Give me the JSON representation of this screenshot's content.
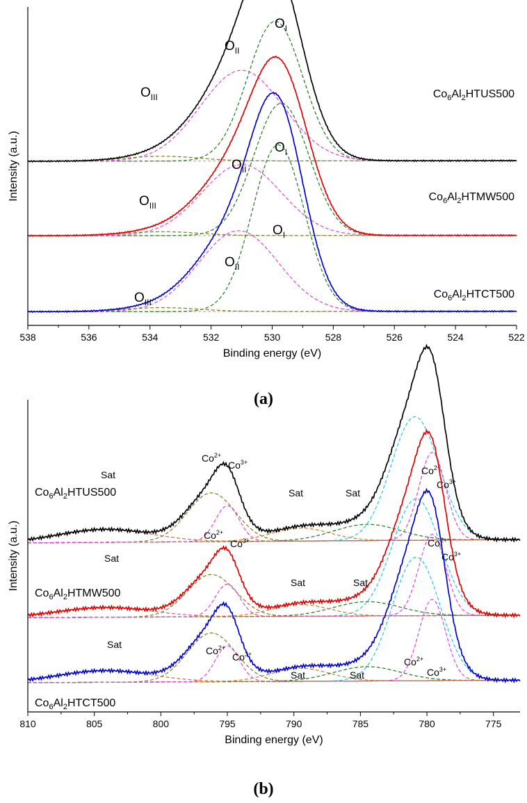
{
  "chart_data": [
    {
      "panel": "(a)",
      "type": "line",
      "xlabel": "Binding energy (eV)",
      "ylabel": "Intensity (a.u.)",
      "xlim": [
        538,
        522
      ],
      "x_reversed": true,
      "xticks": [
        538,
        536,
        534,
        532,
        530,
        528,
        526,
        524,
        522
      ],
      "yticks": "none",
      "samples": [
        {
          "name": "Co6Al2HTUS500",
          "label_main": "Co",
          "label_sub1": "6",
          "label_mid": "Al",
          "label_sub2": "2",
          "label_tail": "HTUS500",
          "color": "#000000",
          "offset": 3.05,
          "background": 0.05,
          "components": [
            {
              "name": "O_I",
              "label_main": "O",
              "label_sub": "I",
              "center": 529.9,
              "width": 0.9,
              "height": 2.85,
              "color": "#1a7a1a"
            },
            {
              "name": "O_II",
              "label_main": "O",
              "label_sub": "II",
              "center": 531.0,
              "width": 1.35,
              "height": 1.85,
              "color": "#e040e0"
            },
            {
              "name": "O_III",
              "label_main": "O",
              "label_sub": "III",
              "center": 533.6,
              "width": 1.2,
              "height": 0.1,
              "color": "#7a7a20"
            }
          ]
        },
        {
          "name": "Co6Al2HTMW500",
          "label_main": "Co",
          "label_sub1": "6",
          "label_mid": "Al",
          "label_sub2": "2",
          "label_tail": "HTMW500",
          "color": "#e00000",
          "offset": 1.55,
          "background": 0.03,
          "components": [
            {
              "name": "O_I",
              "label_main": "O",
              "label_sub": "I",
              "center": 529.7,
              "width": 0.9,
              "height": 2.7,
              "color": "#1a7a1a"
            },
            {
              "name": "O_II",
              "label_main": "O",
              "label_sub": "II",
              "center": 531.0,
              "width": 1.3,
              "height": 1.45,
              "color": "#e040e0"
            },
            {
              "name": "O_III",
              "label_main": "O",
              "label_sub": "III",
              "center": 533.6,
              "width": 1.2,
              "height": 0.08,
              "color": "#7a7a20"
            }
          ]
        },
        {
          "name": "Co6Al2HTCT500",
          "label_main": "Co",
          "label_sub1": "6",
          "label_mid": "Al",
          "label_sub2": "2",
          "label_tail": "HTCT500",
          "color": "#0000d0",
          "offset": 0.0,
          "background": 0.03,
          "components": [
            {
              "name": "O_I",
              "label_main": "O",
              "label_sub": "I",
              "center": 529.8,
              "width": 0.85,
              "height": 3.4,
              "color": "#1a7a1a"
            },
            {
              "name": "O_II",
              "label_main": "O",
              "label_sub": "II",
              "center": 531.1,
              "width": 1.3,
              "height": 1.65,
              "color": "#e040e0"
            },
            {
              "name": "O_III",
              "label_main": "O",
              "label_sub": "III",
              "center": 533.6,
              "width": 1.2,
              "height": 0.08,
              "color": "#7a7a20"
            }
          ]
        }
      ]
    },
    {
      "panel": "(b)",
      "type": "line",
      "xlabel": "Binding energy (eV)",
      "ylabel": "Intensity (a.u.)",
      "xlim": [
        810,
        773
      ],
      "x_reversed": true,
      "xticks": [
        810,
        805,
        800,
        795,
        790,
        785,
        780,
        775
      ],
      "yticks": "none",
      "samples": [
        {
          "name": "Co6Al2HTUS500",
          "label_main": "Co",
          "label_sub1": "6",
          "label_mid": "Al",
          "label_sub2": "2",
          "label_tail": "HTUS500",
          "color": "#000000",
          "offset": 2.1,
          "background": 0.2,
          "components": [
            {
              "name": "Co2+ 2p3/2",
              "center": 780.9,
              "width": 1.8,
              "height": 1.9,
              "color": "#20c8e0"
            },
            {
              "name": "Co3+ 2p3/2",
              "center": 779.6,
              "width": 1.0,
              "height": 1.35,
              "color": "#e040e0"
            },
            {
              "name": "Sat",
              "center": 784.5,
              "width": 2.5,
              "height": 0.25,
              "color": "#1a7a1a"
            },
            {
              "name": "Sat",
              "center": 789.5,
              "width": 2.2,
              "height": 0.2,
              "color": "#d08020"
            },
            {
              "name": "Co2+ 2p1/2",
              "center": 796.2,
              "width": 1.8,
              "height": 0.75,
              "color": "#7a7a20"
            },
            {
              "name": "Co3+ 2p1/2",
              "center": 795.0,
              "width": 0.9,
              "height": 0.55,
              "color": "#e040e0"
            },
            {
              "name": "Sat",
              "center": 804.2,
              "width": 3.5,
              "height": 0.2,
              "color": "#c07050"
            }
          ]
        },
        {
          "name": "Co6Al2HTMW500",
          "label_main": "Co",
          "label_sub1": "6",
          "label_mid": "Al",
          "label_sub2": "2",
          "label_tail": "HTMW500",
          "color": "#e00000",
          "offset": 1.0,
          "background": 0.15,
          "components": [
            {
              "name": "Co2+ 2p3/2",
              "center": 780.8,
              "width": 1.8,
              "height": 1.8,
              "color": "#20c8e0"
            },
            {
              "name": "Co3+ 2p3/2",
              "center": 779.6,
              "width": 1.0,
              "height": 1.25,
              "color": "#e040e0"
            },
            {
              "name": "Sat",
              "center": 784.5,
              "width": 2.5,
              "height": 0.22,
              "color": "#1a7a1a"
            },
            {
              "name": "Sat",
              "center": 789.5,
              "width": 2.2,
              "height": 0.18,
              "color": "#d08020"
            },
            {
              "name": "Co2+ 2p1/2",
              "center": 796.2,
              "width": 1.8,
              "height": 0.65,
              "color": "#7a7a20"
            },
            {
              "name": "Co3+ 2p1/2",
              "center": 795.0,
              "width": 0.9,
              "height": 0.5,
              "color": "#e040e0"
            },
            {
              "name": "Sat",
              "center": 804.2,
              "width": 3.5,
              "height": 0.15,
              "color": "#c07050"
            }
          ]
        },
        {
          "name": "Co6Al2HTCT500",
          "label_main": "Co",
          "label_sub1": "6",
          "label_mid": "Al",
          "label_sub2": "2",
          "label_tail": "HTCT500",
          "color": "#0000d0",
          "offset": 0.0,
          "background": 0.15,
          "components": [
            {
              "name": "Co2+ 2p3/2",
              "center": 780.8,
              "width": 1.8,
              "height": 1.9,
              "color": "#20c8e0"
            },
            {
              "name": "Co3+ 2p3/2",
              "center": 779.6,
              "width": 1.0,
              "height": 1.25,
              "color": "#e040e0"
            },
            {
              "name": "Sat",
              "center": 784.5,
              "width": 2.5,
              "height": 0.22,
              "color": "#1a7a1a"
            },
            {
              "name": "Sat",
              "center": 789.5,
              "width": 2.2,
              "height": 0.2,
              "color": "#d08020"
            },
            {
              "name": "Co2+ 2p1/2",
              "center": 796.2,
              "width": 1.8,
              "height": 0.75,
              "color": "#7a7a20"
            },
            {
              "name": "Co3+ 2p1/2",
              "center": 795.0,
              "width": 0.9,
              "height": 0.55,
              "color": "#e040e0"
            },
            {
              "name": "Sat",
              "center": 804.2,
              "width": 3.5,
              "height": 0.18,
              "color": "#c07050"
            }
          ]
        }
      ]
    }
  ],
  "captions": {
    "a": "(a)",
    "b": "(b)"
  },
  "annotations_b": {
    "sat": "Sat",
    "co_main": "Co",
    "co2_sup": "2+",
    "co3_sup": "3+"
  },
  "colors": {
    "axis": "#000000",
    "background": "#ffffff",
    "baseline": "#b0a080"
  }
}
